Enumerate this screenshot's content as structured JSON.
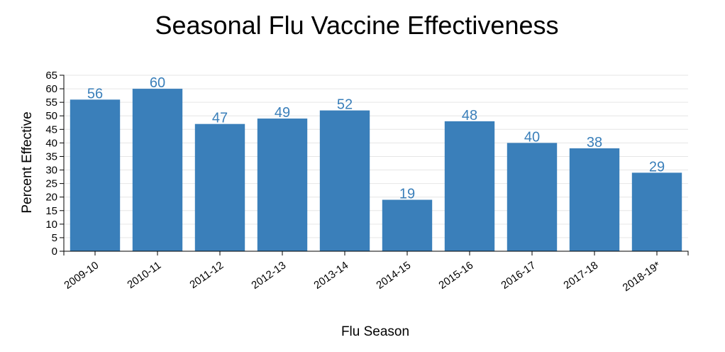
{
  "chart_data": {
    "type": "bar",
    "title": "Seasonal Flu Vaccine Effectiveness",
    "xlabel": "Flu Season",
    "ylabel": "Percent Effective",
    "categories": [
      "2009-10",
      "2010-11",
      "2011-12",
      "2012-13",
      "2013-14",
      "2014-15",
      "2015-16",
      "2016-17",
      "2017-18",
      "2018-19*"
    ],
    "values": [
      56,
      60,
      47,
      49,
      52,
      19,
      48,
      40,
      38,
      29
    ],
    "ylim": [
      0,
      65
    ],
    "yticks": [
      0,
      5,
      10,
      15,
      20,
      25,
      30,
      35,
      40,
      45,
      50,
      55,
      60,
      65
    ],
    "grid": true,
    "bar_color": "#3a7fba",
    "label_color": "#3a7fba"
  }
}
